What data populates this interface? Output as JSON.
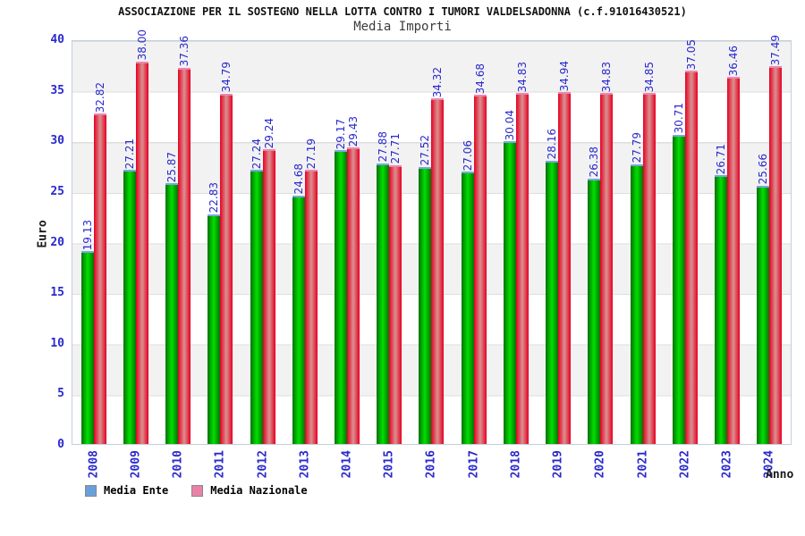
{
  "chart_data": {
    "type": "bar",
    "title": "ASSOCIAZIONE PER IL SOSTEGNO NELLA LOTTA CONTRO I TUMORI VALDELSADONNA (c.f.91016430521)",
    "subtitle": "Media Importi",
    "ylabel": "Euro",
    "xlabel": "Anno",
    "ylim": [
      0,
      40
    ],
    "yticks": [
      0,
      5,
      10,
      15,
      20,
      25,
      30,
      35,
      40
    ],
    "grid": true,
    "band_color": "#f2f2f2",
    "grid_color": "#dedede",
    "tick_label_color": "#2929cc",
    "legend_position": "bottom-left",
    "categories": [
      "2008",
      "2009",
      "2010",
      "2011",
      "2012",
      "2013",
      "2014",
      "2015",
      "2016",
      "2017",
      "2018",
      "2019",
      "2020",
      "2021",
      "2022",
      "2023",
      "2024"
    ],
    "series": [
      {
        "name": "Media Ente",
        "legend_color": "#68a0dc",
        "bar_edge_color": "#067006",
        "bar_center_color": "#00e000",
        "bar_cap_color": "#7ba7e0",
        "values": [
          19.13,
          27.21,
          25.87,
          22.83,
          27.24,
          24.68,
          29.17,
          27.88,
          27.52,
          27.06,
          30.04,
          28.16,
          26.38,
          27.79,
          30.71,
          26.71,
          25.66
        ]
      },
      {
        "name": "Media Nazionale",
        "legend_color": "#ea82a8",
        "bar_edge_color": "#e60021",
        "bar_center_color": "#d99191",
        "bar_cap_color": "#ef86ae",
        "values": [
          32.82,
          38.0,
          37.36,
          34.79,
          29.24,
          27.19,
          29.43,
          27.71,
          34.32,
          34.68,
          34.83,
          34.94,
          34.83,
          34.85,
          37.05,
          36.46,
          37.49
        ]
      }
    ]
  }
}
